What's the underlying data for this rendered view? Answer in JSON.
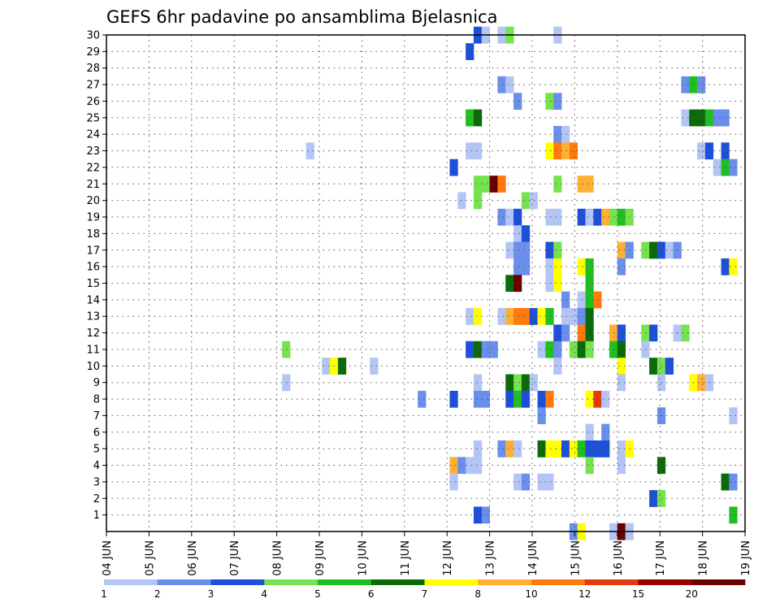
{
  "chart_data": {
    "type": "heatmap",
    "title": "GEFS 6hr padavine po ansamblima Bjelasnica",
    "xlabel": "",
    "ylabel": "",
    "x_step_hours": 6,
    "x_ticks": [
      "04 JUN",
      "05 JUN",
      "06 JUN",
      "07 JUN",
      "08 JUN",
      "09 JUN",
      "10 JUN",
      "11 JUN",
      "12 JUN",
      "13 JUN",
      "14 JUN",
      "15 JUN",
      "16 JUN",
      "17 JUN",
      "18 JUN",
      "19 JUN"
    ],
    "y_ticks": [
      "1",
      "2",
      "3",
      "4",
      "5",
      "6",
      "7",
      "8",
      "9",
      "10",
      "11",
      "12",
      "13",
      "14",
      "15",
      "16",
      "17",
      "18",
      "19",
      "20",
      "21",
      "22",
      "23",
      "24",
      "25",
      "26",
      "27",
      "28",
      "29",
      "30"
    ],
    "ylim": [
      0,
      30
    ],
    "grid": true,
    "colorbar": {
      "levels": [
        "1",
        "2",
        "3",
        "4",
        "5",
        "6",
        "7",
        "8",
        "10",
        "12",
        "15",
        "20"
      ],
      "colors": [
        "#b4c5f5",
        "#6a8eeb",
        "#1d4fd9",
        "#76e34e",
        "#1fbe21",
        "#0b6b0b",
        "#ffff00",
        "#ffb032",
        "#ff7a0e",
        "#e33b0e",
        "#990000",
        "#6a0000"
      ]
    },
    "cells": [
      [
        46,
        30,
        2
      ],
      [
        47,
        30,
        0
      ],
      [
        49,
        30,
        0
      ],
      [
        50,
        30,
        3
      ],
      [
        56,
        30,
        0
      ],
      [
        45,
        29,
        2
      ],
      [
        49,
        27,
        1
      ],
      [
        50,
        27,
        0
      ],
      [
        72,
        27,
        1
      ],
      [
        73,
        27,
        4
      ],
      [
        74,
        27,
        1
      ],
      [
        51,
        26,
        1
      ],
      [
        55,
        26,
        3
      ],
      [
        56,
        26,
        1
      ],
      [
        45,
        25,
        4
      ],
      [
        46,
        25,
        5
      ],
      [
        72,
        25,
        0
      ],
      [
        73,
        25,
        5
      ],
      [
        74,
        25,
        5
      ],
      [
        75,
        25,
        4
      ],
      [
        76,
        25,
        1
      ],
      [
        77,
        25,
        1
      ],
      [
        56,
        24,
        1
      ],
      [
        57,
        24,
        0
      ],
      [
        45,
        23,
        0
      ],
      [
        46,
        23,
        0
      ],
      [
        25,
        23,
        0
      ],
      [
        55,
        23,
        6
      ],
      [
        56,
        23,
        8
      ],
      [
        57,
        23,
        7
      ],
      [
        58,
        23,
        8
      ],
      [
        74,
        23,
        0
      ],
      [
        75,
        23,
        2
      ],
      [
        77,
        23,
        2
      ],
      [
        43,
        22,
        2
      ],
      [
        76,
        22,
        0
      ],
      [
        77,
        22,
        4
      ],
      [
        78,
        22,
        1
      ],
      [
        46,
        21,
        3
      ],
      [
        47,
        21,
        3
      ],
      [
        48,
        21,
        11
      ],
      [
        49,
        21,
        8
      ],
      [
        56,
        21,
        3
      ],
      [
        59,
        21,
        7
      ],
      [
        60,
        21,
        7
      ],
      [
        44,
        20,
        0
      ],
      [
        46,
        20,
        3
      ],
      [
        52,
        20,
        3
      ],
      [
        53,
        20,
        0
      ],
      [
        49,
        19,
        1
      ],
      [
        50,
        19,
        0
      ],
      [
        51,
        19,
        2
      ],
      [
        55,
        19,
        0
      ],
      [
        56,
        19,
        0
      ],
      [
        59,
        19,
        2
      ],
      [
        60,
        19,
        0
      ],
      [
        61,
        19,
        2
      ],
      [
        62,
        19,
        7
      ],
      [
        63,
        19,
        3
      ],
      [
        64,
        19,
        4
      ],
      [
        65,
        19,
        3
      ],
      [
        51,
        18,
        0
      ],
      [
        52,
        18,
        2
      ],
      [
        50,
        17,
        0
      ],
      [
        51,
        17,
        1
      ],
      [
        52,
        17,
        1
      ],
      [
        55,
        17,
        2
      ],
      [
        56,
        17,
        3
      ],
      [
        64,
        17,
        7
      ],
      [
        65,
        17,
        1
      ],
      [
        67,
        17,
        3
      ],
      [
        68,
        17,
        5
      ],
      [
        69,
        17,
        2
      ],
      [
        70,
        17,
        0
      ],
      [
        71,
        17,
        1
      ],
      [
        51,
        16,
        1
      ],
      [
        52,
        16,
        1
      ],
      [
        55,
        16,
        0
      ],
      [
        56,
        16,
        6
      ],
      [
        59,
        16,
        6
      ],
      [
        60,
        16,
        4
      ],
      [
        64,
        16,
        1
      ],
      [
        77,
        16,
        2
      ],
      [
        78,
        16,
        6
      ],
      [
        50,
        15,
        5
      ],
      [
        51,
        15,
        11
      ],
      [
        55,
        15,
        0
      ],
      [
        56,
        15,
        6
      ],
      [
        60,
        15,
        4
      ],
      [
        57,
        14,
        1
      ],
      [
        59,
        14,
        0
      ],
      [
        60,
        14,
        4
      ],
      [
        61,
        14,
        8
      ],
      [
        45,
        13,
        0
      ],
      [
        46,
        13,
        6
      ],
      [
        49,
        13,
        0
      ],
      [
        50,
        13,
        7
      ],
      [
        51,
        13,
        8
      ],
      [
        52,
        13,
        8
      ],
      [
        53,
        13,
        2
      ],
      [
        54,
        13,
        6
      ],
      [
        55,
        13,
        4
      ],
      [
        57,
        13,
        0
      ],
      [
        58,
        13,
        0
      ],
      [
        59,
        13,
        1
      ],
      [
        60,
        13,
        5
      ],
      [
        56,
        12,
        2
      ],
      [
        57,
        12,
        1
      ],
      [
        59,
        12,
        8
      ],
      [
        60,
        12,
        5
      ],
      [
        63,
        12,
        7
      ],
      [
        64,
        12,
        2
      ],
      [
        67,
        12,
        3
      ],
      [
        68,
        12,
        2
      ],
      [
        71,
        12,
        0
      ],
      [
        72,
        12,
        3
      ],
      [
        22,
        11,
        3
      ],
      [
        45,
        11,
        2
      ],
      [
        46,
        11,
        5
      ],
      [
        47,
        11,
        1
      ],
      [
        48,
        11,
        1
      ],
      [
        54,
        11,
        0
      ],
      [
        55,
        11,
        4
      ],
      [
        56,
        11,
        1
      ],
      [
        58,
        11,
        3
      ],
      [
        59,
        11,
        5
      ],
      [
        60,
        11,
        3
      ],
      [
        63,
        11,
        4
      ],
      [
        64,
        11,
        5
      ],
      [
        67,
        11,
        0
      ],
      [
        27,
        10,
        0
      ],
      [
        28,
        10,
        6
      ],
      [
        29,
        10,
        5
      ],
      [
        33,
        10,
        0
      ],
      [
        56,
        10,
        0
      ],
      [
        64,
        10,
        6
      ],
      [
        68,
        10,
        5
      ],
      [
        69,
        10,
        3
      ],
      [
        70,
        10,
        2
      ],
      [
        22,
        9,
        0
      ],
      [
        46,
        9,
        0
      ],
      [
        50,
        9,
        5
      ],
      [
        51,
        9,
        3
      ],
      [
        52,
        9,
        5
      ],
      [
        53,
        9,
        0
      ],
      [
        64,
        9,
        0
      ],
      [
        69,
        9,
        0
      ],
      [
        73,
        9,
        6
      ],
      [
        74,
        9,
        7
      ],
      [
        75,
        9,
        0
      ],
      [
        39,
        8,
        1
      ],
      [
        43,
        8,
        2
      ],
      [
        46,
        8,
        1
      ],
      [
        47,
        8,
        1
      ],
      [
        50,
        8,
        2
      ],
      [
        51,
        8,
        4
      ],
      [
        52,
        8,
        2
      ],
      [
        54,
        8,
        2
      ],
      [
        55,
        8,
        8
      ],
      [
        60,
        8,
        6
      ],
      [
        61,
        8,
        9
      ],
      [
        62,
        8,
        0
      ],
      [
        54,
        7,
        1
      ],
      [
        69,
        7,
        1
      ],
      [
        78,
        7,
        0
      ],
      [
        60,
        6,
        0
      ],
      [
        62,
        6,
        1
      ],
      [
        46,
        5,
        0
      ],
      [
        49,
        5,
        1
      ],
      [
        50,
        5,
        7
      ],
      [
        51,
        5,
        0
      ],
      [
        54,
        5,
        5
      ],
      [
        55,
        5,
        6
      ],
      [
        56,
        5,
        6
      ],
      [
        57,
        5,
        2
      ],
      [
        58,
        5,
        6
      ],
      [
        59,
        5,
        4
      ],
      [
        60,
        5,
        2
      ],
      [
        61,
        5,
        2
      ],
      [
        62,
        5,
        2
      ],
      [
        64,
        5,
        0
      ],
      [
        65,
        5,
        6
      ],
      [
        43,
        4,
        7
      ],
      [
        44,
        4,
        1
      ],
      [
        45,
        4,
        0
      ],
      [
        46,
        4,
        0
      ],
      [
        60,
        4,
        3
      ],
      [
        64,
        4,
        0
      ],
      [
        69,
        4,
        5
      ],
      [
        43,
        3,
        0
      ],
      [
        51,
        3,
        0
      ],
      [
        52,
        3,
        1
      ],
      [
        54,
        3,
        0
      ],
      [
        55,
        3,
        0
      ],
      [
        77,
        3,
        5
      ],
      [
        78,
        3,
        1
      ],
      [
        68,
        2,
        2
      ],
      [
        69,
        2,
        3
      ],
      [
        46,
        1,
        2
      ],
      [
        47,
        1,
        1
      ],
      [
        78,
        1,
        4
      ],
      [
        58,
        0,
        1
      ],
      [
        59,
        0,
        6
      ],
      [
        63,
        0,
        0
      ],
      [
        64,
        0,
        11
      ],
      [
        65,
        0,
        0
      ]
    ]
  }
}
